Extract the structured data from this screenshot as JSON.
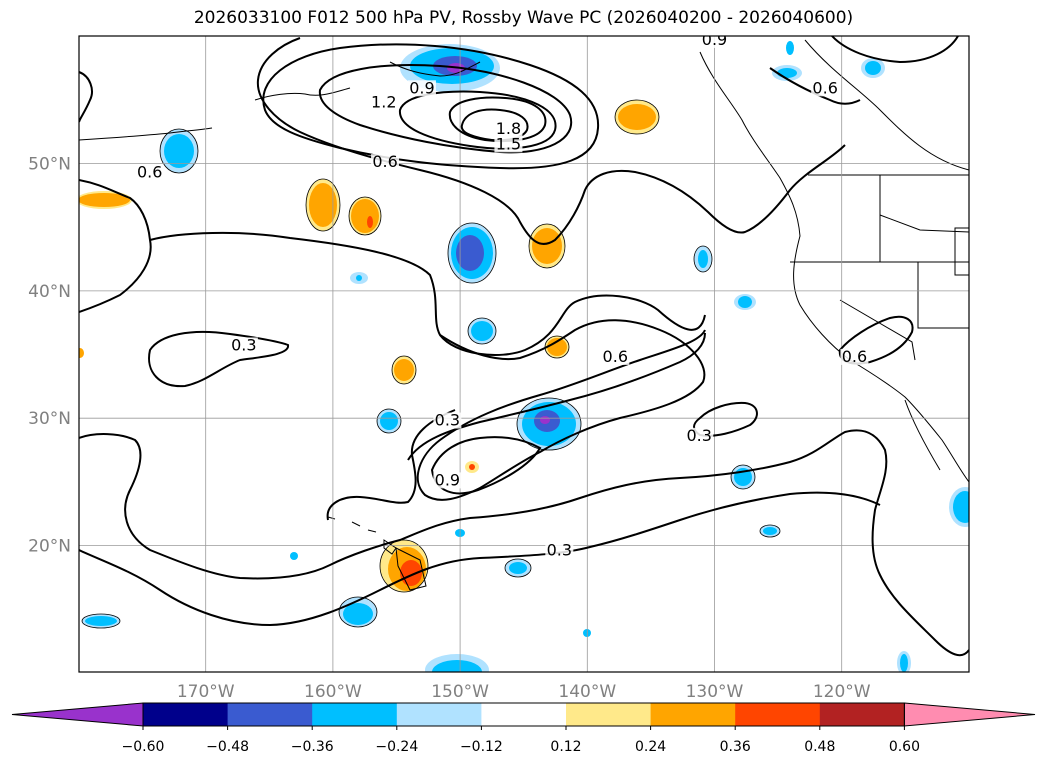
{
  "title": "2026033100 F012 500 hPa PV, Rossby Wave PC (2026040200 - 2026040600)",
  "map": {
    "lat_ticks": [
      {
        "value": 20,
        "label": "20°N"
      },
      {
        "value": 30,
        "label": "30°N"
      },
      {
        "value": 40,
        "label": "40°N"
      },
      {
        "value": 50,
        "label": "50°N"
      }
    ],
    "lon_ticks": [
      {
        "value": -170,
        "label": "170°W"
      },
      {
        "value": -160,
        "label": "160°W"
      },
      {
        "value": -150,
        "label": "150°W"
      },
      {
        "value": -140,
        "label": "140°W"
      },
      {
        "value": -130,
        "label": "130°W"
      },
      {
        "value": -120,
        "label": "120°W"
      }
    ],
    "contour_labels": [
      {
        "text": "0.9",
        "lon": -153.0,
        "lat": 55.6
      },
      {
        "text": "1.2",
        "lon": -156.0,
        "lat": 54.5
      },
      {
        "text": "1.8",
        "lon": -146.2,
        "lat": 52.4
      },
      {
        "text": "1.5",
        "lon": -146.2,
        "lat": 51.2
      },
      {
        "text": "0.6",
        "lon": -155.9,
        "lat": 49.8
      },
      {
        "text": "0.9",
        "lon": -130.0,
        "lat": 59.4
      },
      {
        "text": "0.6",
        "lon": -121.3,
        "lat": 55.6
      },
      {
        "text": "0.6",
        "lon": -174.4,
        "lat": 49.0
      },
      {
        "text": "0.3",
        "lon": -167.0,
        "lat": 35.4
      },
      {
        "text": "0.3",
        "lon": -151.0,
        "lat": 29.5
      },
      {
        "text": "0.6",
        "lon": -137.8,
        "lat": 34.5
      },
      {
        "text": "0.3",
        "lon": -131.2,
        "lat": 28.3
      },
      {
        "text": "0.9",
        "lon": -151.0,
        "lat": 24.8
      },
      {
        "text": "0.3",
        "lon": -142.2,
        "lat": 19.3
      },
      {
        "text": "0.6",
        "lon": -119.0,
        "lat": 34.5
      }
    ]
  },
  "colorbar": {
    "ticks": [
      "−0.60",
      "−0.48",
      "−0.36",
      "−0.24",
      "−0.12",
      "0.12",
      "0.24",
      "0.36",
      "0.48",
      "0.60"
    ],
    "colors": [
      "#9932cc",
      "#00008b",
      "#3a5bd0",
      "#00bfff",
      "#b0e2ff",
      "#ffffff",
      "#ffe98a",
      "#ffa500",
      "#ff4500",
      "#b22222",
      "#ff8cb0"
    ]
  }
}
